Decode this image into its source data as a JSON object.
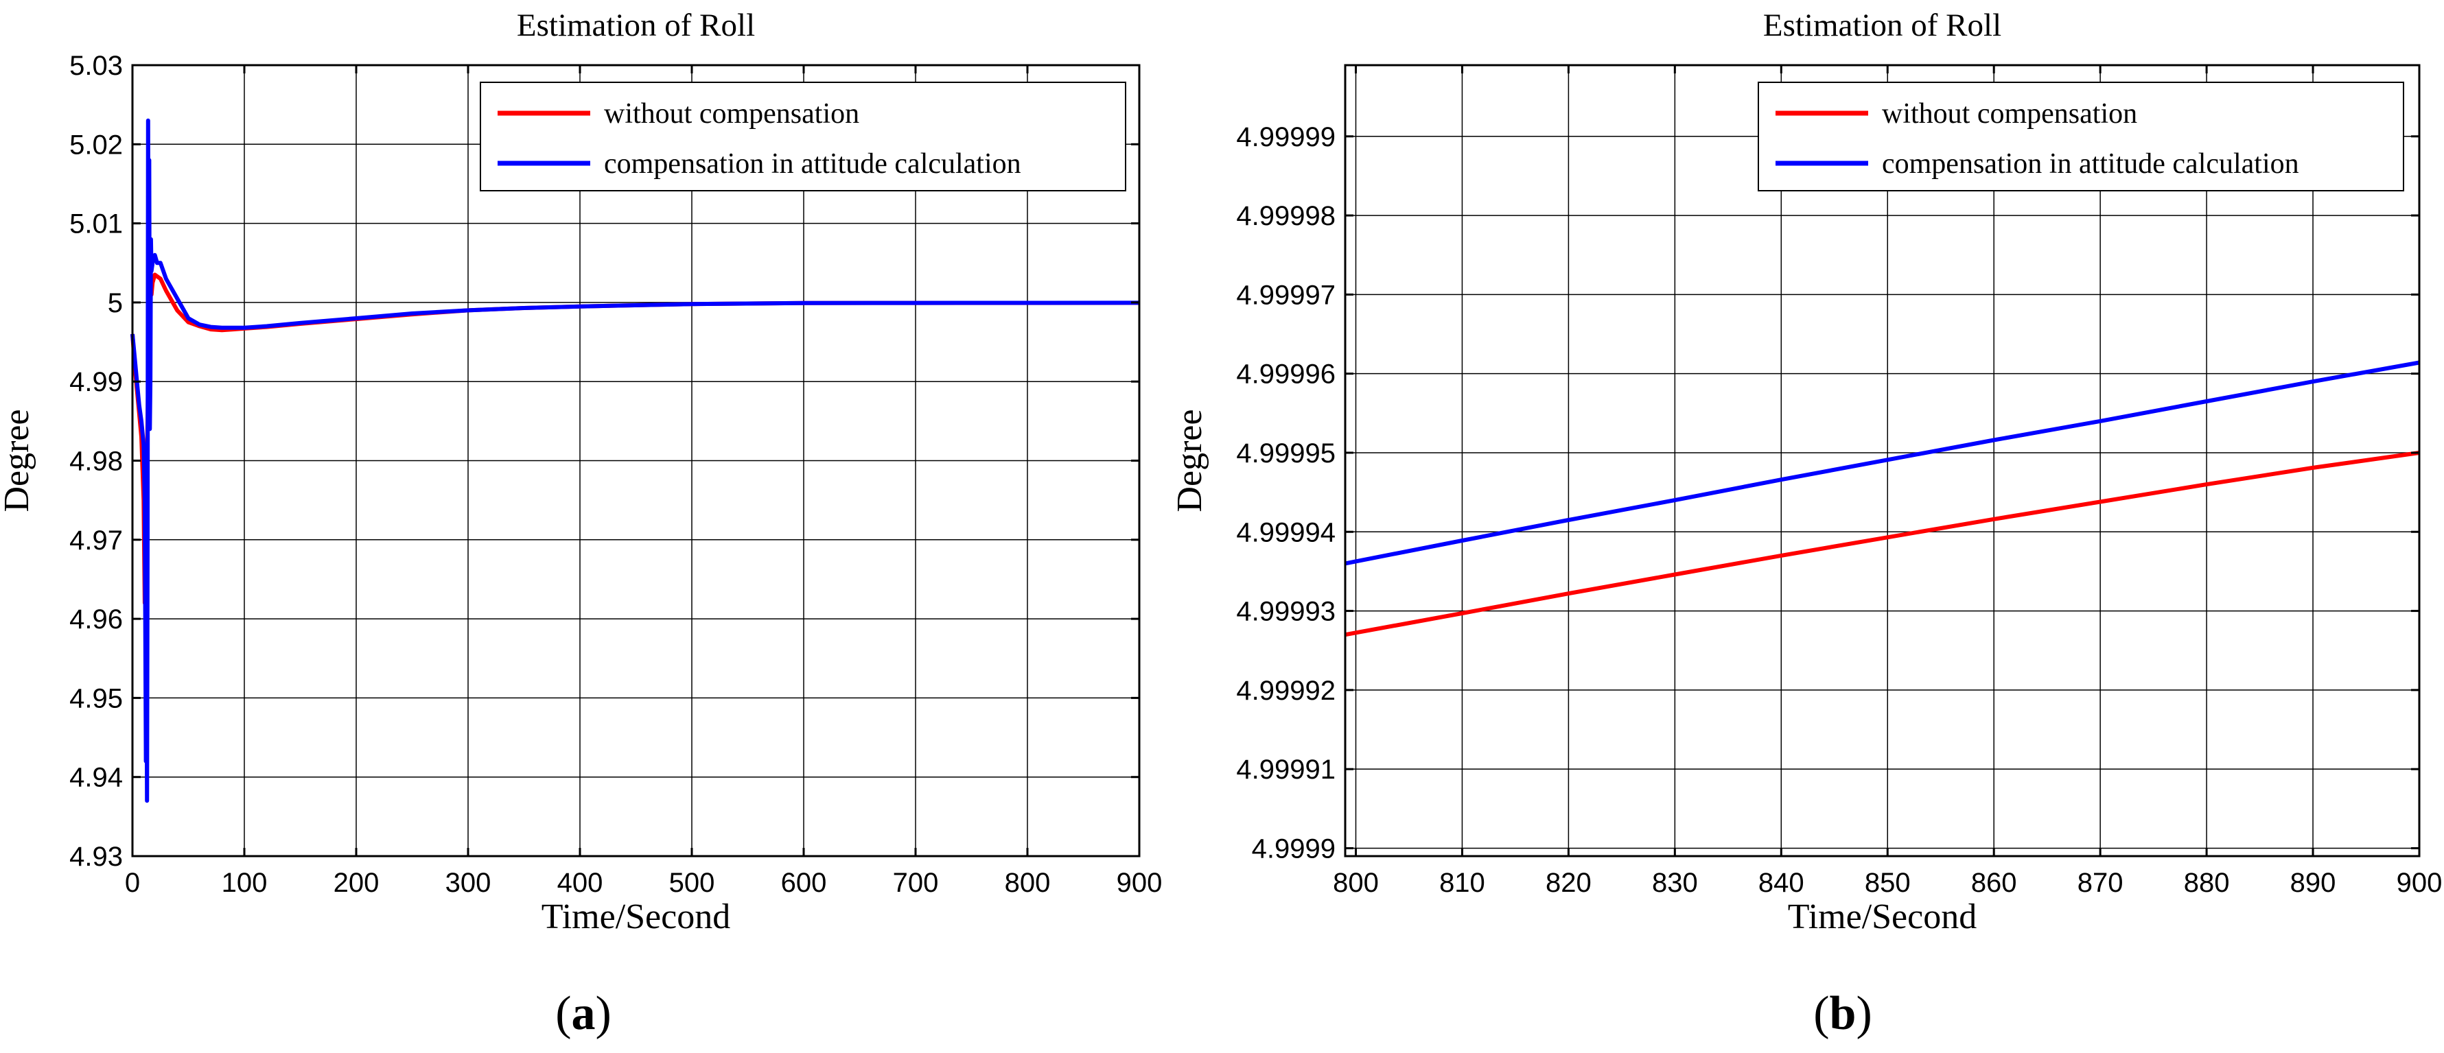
{
  "chart_data": [
    {
      "type": "line",
      "title": "Estimation of Roll",
      "xlabel": "Time/Second",
      "ylabel": "Degree",
      "panel_label": {
        "open": "(",
        "letter": "a",
        "close": ")"
      },
      "xlim": [
        0,
        900
      ],
      "ylim": [
        4.93,
        5.03
      ],
      "xticks": [
        0,
        100,
        200,
        300,
        400,
        500,
        600,
        700,
        800,
        900
      ],
      "xtick_labels": [
        "0",
        "100",
        "200",
        "300",
        "400",
        "500",
        "600",
        "700",
        "800",
        "900"
      ],
      "yticks": [
        4.93,
        4.94,
        4.95,
        4.96,
        4.97,
        4.98,
        4.99,
        5.0,
        5.01,
        5.02,
        5.03
      ],
      "ytick_labels": [
        "4.93",
        "4.94",
        "4.95",
        "4.96",
        "4.97",
        "4.98",
        "4.99",
        "5",
        "5.01",
        "5.02",
        "5.03"
      ],
      "grid": true,
      "legend_position": "top-right",
      "series": [
        {
          "name": "without compensation",
          "color": "#ff0000",
          "x": [
            0,
            2,
            4,
            6,
            8,
            10,
            11,
            12,
            13,
            14,
            15,
            16,
            17,
            18,
            20,
            25,
            30,
            40,
            50,
            60,
            70,
            80,
            90,
            100,
            120,
            150,
            200,
            250,
            300,
            350,
            400,
            500,
            600,
            700,
            800,
            900
          ],
          "y": [
            4.996,
            4.992,
            4.989,
            4.986,
            4.983,
            4.975,
            4.962,
            4.97,
            4.98,
            4.99,
            5.005,
            5.002,
            5.001,
            5.0025,
            5.0035,
            5.003,
            5.0015,
            4.999,
            4.9975,
            4.997,
            4.9966,
            4.9965,
            4.9966,
            4.9967,
            4.9969,
            4.9973,
            4.9979,
            4.9985,
            4.999,
            4.9993,
            4.9995,
            4.9998,
            4.99992,
            4.99994,
            4.99994,
            4.99995
          ]
        },
        {
          "name": "compensation in attitude calculation",
          "color": "#0000ff",
          "x": [
            0,
            2,
            4,
            6,
            8,
            10,
            11,
            12,
            12.5,
            13,
            13.5,
            14,
            14.5,
            15,
            15.5,
            16,
            16.5,
            17,
            18,
            20,
            22,
            25,
            30,
            40,
            50,
            60,
            70,
            80,
            90,
            100,
            120,
            150,
            200,
            250,
            300,
            350,
            400,
            500,
            600,
            700,
            800,
            900
          ],
          "y": [
            4.996,
            4.993,
            4.99,
            4.987,
            4.985,
            4.982,
            4.975,
            4.942,
            4.96,
            4.937,
            4.97,
            5.023,
            4.99,
            5.018,
            4.984,
            4.99,
            5.008,
            5.004,
            5.005,
            5.006,
            5.005,
            5.005,
            5.003,
            5.0005,
            4.998,
            4.9972,
            4.9969,
            4.9968,
            4.9968,
            4.9968,
            4.997,
            4.9974,
            4.998,
            4.9986,
            4.999,
            4.9993,
            4.9995,
            4.9998,
            4.99992,
            4.99994,
            4.99995,
            4.99996
          ]
        }
      ]
    },
    {
      "type": "line",
      "title": "Estimation of Roll",
      "xlabel": "Time/Second",
      "ylabel": "Degree",
      "panel_label": {
        "open": "(",
        "letter": "b",
        "close": ")"
      },
      "xlim": [
        799,
        900
      ],
      "ylim": [
        4.999899,
        4.999999
      ],
      "xticks": [
        800,
        810,
        820,
        830,
        840,
        850,
        860,
        870,
        880,
        890,
        900
      ],
      "xtick_labels": [
        "800",
        "810",
        "820",
        "830",
        "840",
        "850",
        "860",
        "870",
        "880",
        "890",
        "900"
      ],
      "yticks": [
        4.9999,
        4.99991,
        4.99992,
        4.99993,
        4.99994,
        4.99995,
        4.99996,
        4.99997,
        4.99998,
        4.99999
      ],
      "ytick_labels": [
        "4.9999",
        "4.99991",
        "4.99992",
        "4.99993",
        "4.99994",
        "4.99995",
        "4.99996",
        "4.99997",
        "4.99998",
        "4.99999"
      ],
      "grid": true,
      "legend_position": "top-right",
      "series": [
        {
          "name": "without compensation",
          "color": "#ff0000",
          "x": [
            799,
            810,
            820,
            830,
            840,
            850,
            860,
            870,
            880,
            890,
            900
          ],
          "y": [
            4.999927,
            4.9999297,
            4.9999322,
            4.9999346,
            4.999937,
            4.9999393,
            4.9999416,
            4.9999438,
            4.999946,
            4.9999481,
            4.99995
          ]
        },
        {
          "name": "compensation in attitude calculation",
          "color": "#0000ff",
          "x": [
            799,
            810,
            820,
            830,
            840,
            850,
            860,
            870,
            880,
            890,
            900
          ],
          "y": [
            4.999936,
            4.9999389,
            4.9999415,
            4.999944,
            4.9999466,
            4.9999491,
            4.9999516,
            4.999954,
            4.9999565,
            4.999959,
            4.9999614
          ]
        }
      ]
    }
  ]
}
